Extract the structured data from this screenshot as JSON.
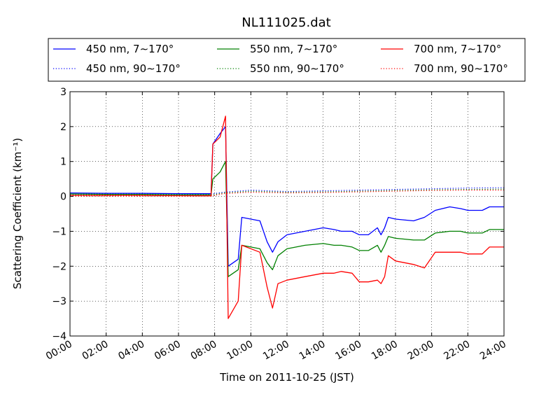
{
  "chart_data": {
    "type": "line",
    "title": "NL111025.dat",
    "xlabel": "Time on 2011-10-25 (JST)",
    "ylabel": "Scattering Coefficient (km⁻¹)",
    "xlim": [
      0,
      24
    ],
    "ylim": [
      -4,
      3
    ],
    "x_ticks": [
      "00:00",
      "02:00",
      "04:00",
      "06:00",
      "08:00",
      "10:00",
      "12:00",
      "14:00",
      "16:00",
      "18:00",
      "20:00",
      "22:00",
      "24:00"
    ],
    "y_ticks": [
      "3",
      "2",
      "1",
      "0",
      "−1",
      "−2",
      "−3",
      "−4"
    ],
    "grid": true,
    "legend": {
      "placement": "top",
      "columns": 3
    },
    "series": [
      {
        "name": "450 nm, 7∼170°",
        "color": "#0000ff",
        "style": "solid",
        "x": [
          0,
          2,
          4,
          6,
          7.8,
          7.9,
          8.3,
          8.6,
          8.75,
          9.3,
          9.5,
          10.5,
          10.9,
          11.2,
          11.5,
          12,
          13,
          14,
          14.6,
          15,
          15.6,
          16,
          16.5,
          17,
          17.2,
          17.4,
          17.6,
          18,
          19,
          19.6,
          20.2,
          21,
          21.6,
          22,
          22.8,
          23.2,
          24
        ],
        "y": [
          0.1,
          0.09,
          0.09,
          0.08,
          0.08,
          1.5,
          1.8,
          2.0,
          -2.0,
          -1.8,
          -0.6,
          -0.7,
          -1.3,
          -1.6,
          -1.3,
          -1.1,
          -1.0,
          -0.9,
          -0.95,
          -1.0,
          -1.0,
          -1.1,
          -1.1,
          -0.9,
          -1.1,
          -0.9,
          -0.6,
          -0.65,
          -0.7,
          -0.6,
          -0.4,
          -0.3,
          -0.35,
          -0.4,
          -0.4,
          -0.3,
          -0.3
        ]
      },
      {
        "name": "450 nm, 90∼170°",
        "color": "#0000ff",
        "style": "dotted",
        "x": [
          0,
          4,
          7.8,
          8.5,
          10,
          12,
          14,
          16,
          18,
          20,
          22,
          24
        ],
        "y": [
          0.07,
          0.07,
          0.07,
          0.12,
          0.18,
          0.14,
          0.16,
          0.18,
          0.2,
          0.22,
          0.24,
          0.25
        ]
      },
      {
        "name": "550 nm, 7∼170°",
        "color": "#008000",
        "style": "solid",
        "x": [
          0,
          2,
          4,
          6,
          7.8,
          7.9,
          8.3,
          8.6,
          8.75,
          9.3,
          9.5,
          10.5,
          10.9,
          11.2,
          11.5,
          12,
          13,
          14,
          14.6,
          15,
          15.6,
          16,
          16.5,
          17,
          17.2,
          17.4,
          17.6,
          18,
          19,
          19.6,
          20.2,
          21,
          21.6,
          22,
          22.8,
          23.2,
          24
        ],
        "y": [
          0.07,
          0.06,
          0.06,
          0.05,
          0.05,
          0.5,
          0.7,
          1.0,
          -2.3,
          -2.1,
          -1.4,
          -1.5,
          -1.9,
          -2.1,
          -1.7,
          -1.5,
          -1.4,
          -1.35,
          -1.4,
          -1.4,
          -1.45,
          -1.55,
          -1.55,
          -1.4,
          -1.6,
          -1.4,
          -1.15,
          -1.2,
          -1.25,
          -1.25,
          -1.05,
          -1.0,
          -1.0,
          -1.05,
          -1.05,
          -0.95,
          -0.95
        ]
      },
      {
        "name": "550 nm, 90∼170°",
        "color": "#008000",
        "style": "dotted",
        "x": [
          0,
          4,
          7.8,
          8.5,
          10,
          12,
          14,
          16,
          18,
          20,
          22,
          24
        ],
        "y": [
          0.04,
          0.04,
          0.04,
          0.1,
          0.15,
          0.12,
          0.13,
          0.15,
          0.17,
          0.19,
          0.2,
          0.21
        ]
      },
      {
        "name": "700 nm, 7∼170°",
        "color": "#ff0000",
        "style": "solid",
        "x": [
          0,
          2,
          4,
          6,
          7.8,
          7.9,
          8.3,
          8.6,
          8.75,
          9.3,
          9.5,
          10.5,
          10.9,
          11.2,
          11.5,
          12,
          13,
          14,
          14.6,
          15,
          15.6,
          16,
          16.5,
          17,
          17.2,
          17.4,
          17.6,
          18,
          19,
          19.6,
          20.2,
          21,
          21.6,
          22,
          22.8,
          23.2,
          24
        ],
        "y": [
          0.03,
          0.03,
          0.03,
          0.02,
          0.02,
          1.5,
          1.7,
          2.3,
          -3.5,
          -3.0,
          -1.4,
          -1.6,
          -2.6,
          -3.2,
          -2.5,
          -2.4,
          -2.3,
          -2.2,
          -2.2,
          -2.15,
          -2.2,
          -2.45,
          -2.45,
          -2.4,
          -2.5,
          -2.3,
          -1.7,
          -1.85,
          -1.95,
          -2.05,
          -1.6,
          -1.6,
          -1.6,
          -1.65,
          -1.65,
          -1.45,
          -1.45
        ]
      },
      {
        "name": "700 nm, 90∼170°",
        "color": "#ff0000",
        "style": "dotted",
        "x": [
          0,
          4,
          7.8,
          8.5,
          10,
          12,
          14,
          16,
          18,
          20,
          22,
          24
        ],
        "y": [
          0.01,
          0.01,
          0.01,
          0.08,
          0.12,
          0.1,
          0.11,
          0.13,
          0.15,
          0.17,
          0.18,
          0.18
        ]
      }
    ]
  }
}
